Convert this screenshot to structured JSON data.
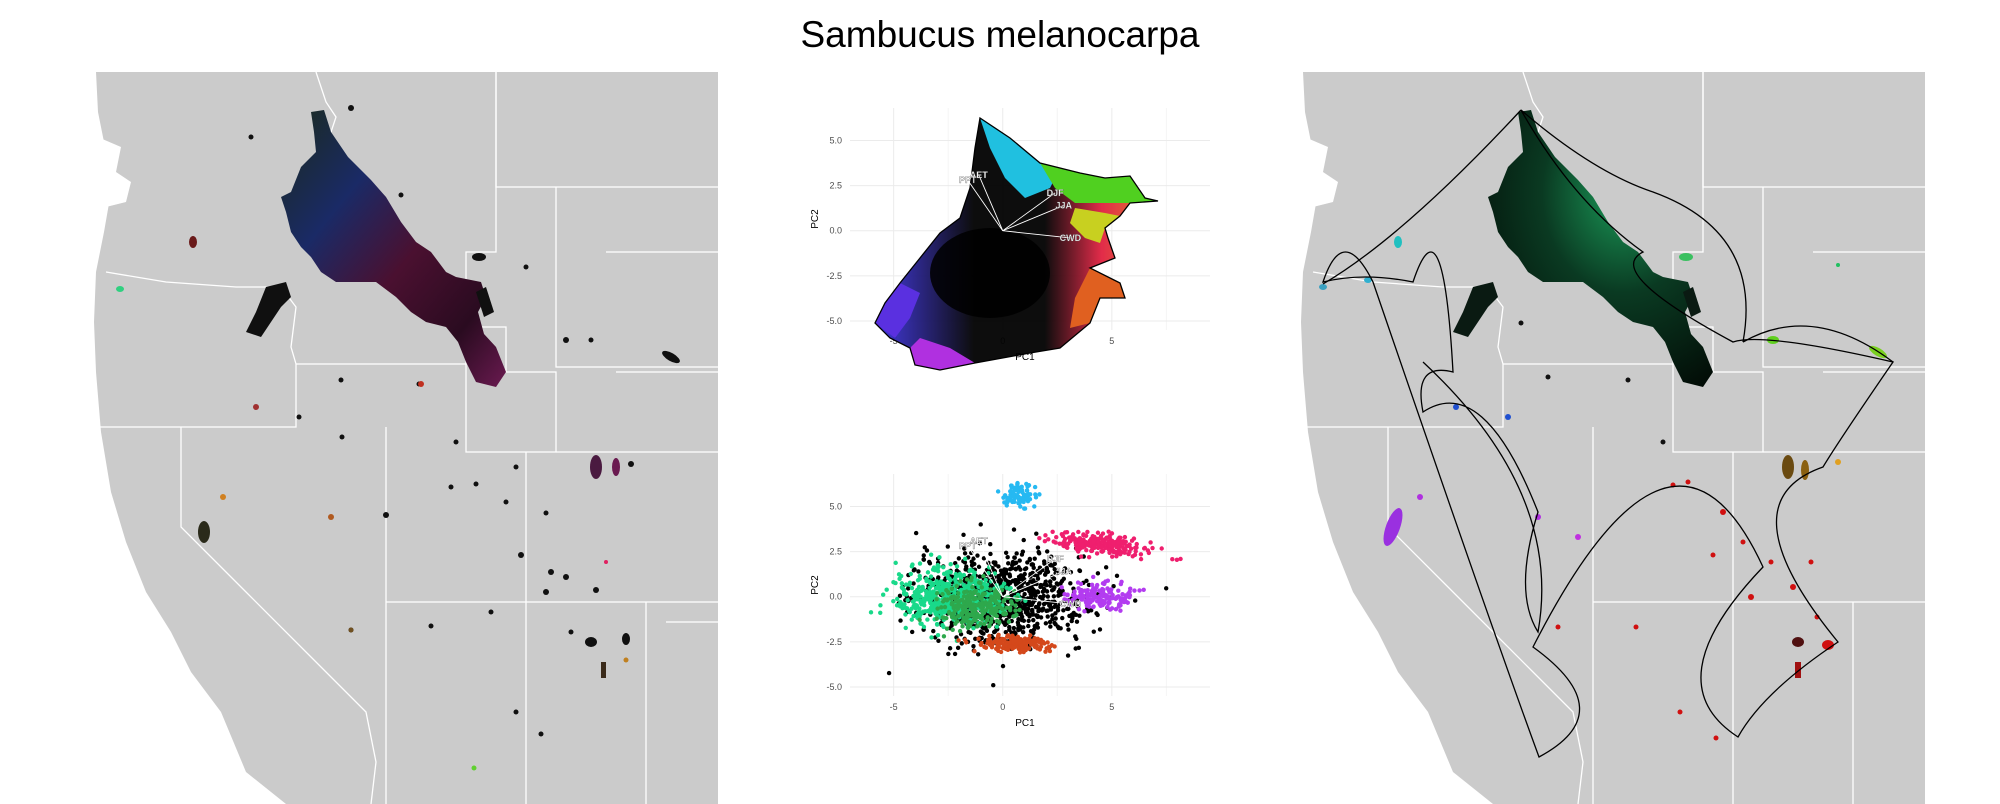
{
  "title": "Sambucus melanocarpa",
  "colors": {
    "map_land": "#cbcbcb",
    "map_water": "#ffffff",
    "border": "#ffffff",
    "range_dark": "#0b0f0b",
    "hull_line": "#000000"
  },
  "maps": {
    "left": {
      "description_icon": "map-range-rgb"
    },
    "right": {
      "description_icon": "map-range-cluster"
    }
  },
  "chart_data": [
    {
      "type": "scatter",
      "panel": "pca-top",
      "title": "",
      "xlabel": "PC1",
      "ylabel": "PC2",
      "xlim": [
        -7,
        9.5
      ],
      "ylim": [
        -5.5,
        6.8
      ],
      "xticks": [
        -5,
        0,
        5
      ],
      "yticks": [
        -5.0,
        -2.5,
        0.0,
        2.5,
        5.0
      ],
      "ytick_labels": [
        "-5.0",
        "-2.5",
        "0.0",
        "2.5",
        "5.0"
      ],
      "xtick_labels": [
        "-5",
        "0",
        "5"
      ],
      "grid": true,
      "loadings": [
        {
          "label": "AET",
          "x": -1.1,
          "y": 3.1
        },
        {
          "label": "PPT",
          "x": -1.6,
          "y": 2.8
        },
        {
          "label": "DJF",
          "x": 2.4,
          "y": 2.1
        },
        {
          "label": "JJA",
          "x": 2.8,
          "y": 1.4
        },
        {
          "label": "CWD",
          "x": 3.1,
          "y": -0.4
        }
      ]
    },
    {
      "type": "scatter",
      "panel": "pca-bottom",
      "title": "",
      "xlabel": "PC1",
      "ylabel": "PC2",
      "xlim": [
        -7,
        9.5
      ],
      "ylim": [
        -5.5,
        6.8
      ],
      "xticks": [
        -5,
        0,
        5
      ],
      "yticks": [
        -5.0,
        -2.5,
        0.0,
        2.5,
        5.0
      ],
      "ytick_labels": [
        "-5.0",
        "-2.5",
        "0.0",
        "2.5",
        "5.0"
      ],
      "xtick_labels": [
        "-5",
        "0",
        "5"
      ],
      "grid": true,
      "loadings": [
        {
          "label": "AET",
          "x": -1.1,
          "y": 3.1
        },
        {
          "label": "PPT",
          "x": -1.6,
          "y": 2.8
        },
        {
          "label": "DJF",
          "x": 2.4,
          "y": 2.1
        },
        {
          "label": "JJA",
          "x": 2.8,
          "y": 1.4
        },
        {
          "label": "CWD",
          "x": 3.1,
          "y": -0.4
        }
      ],
      "clusters": [
        {
          "color": "#000000",
          "cx": 0.0,
          "cy": 0.0,
          "sx": 3.5,
          "sy": 2.2
        },
        {
          "color": "#19d98a",
          "cx": -2.5,
          "cy": 0.0,
          "sx": 2.2,
          "sy": 1.4
        },
        {
          "color": "#ef1f6e",
          "cx": 4.6,
          "cy": 2.9,
          "sx": 2.2,
          "sy": 0.5
        },
        {
          "color": "#26b9f2",
          "cx": 0.8,
          "cy": 5.6,
          "sx": 0.7,
          "sy": 0.6
        },
        {
          "color": "#b33cf0",
          "cx": 4.5,
          "cy": 0.0,
          "sx": 1.4,
          "sy": 0.6
        },
        {
          "color": "#d4481b",
          "cx": 0.6,
          "cy": -2.6,
          "sx": 1.5,
          "sy": 0.4
        },
        {
          "color": "#2ea84c",
          "cx": -1.4,
          "cy": -0.6,
          "sx": 1.6,
          "sy": 1.1
        }
      ]
    }
  ]
}
